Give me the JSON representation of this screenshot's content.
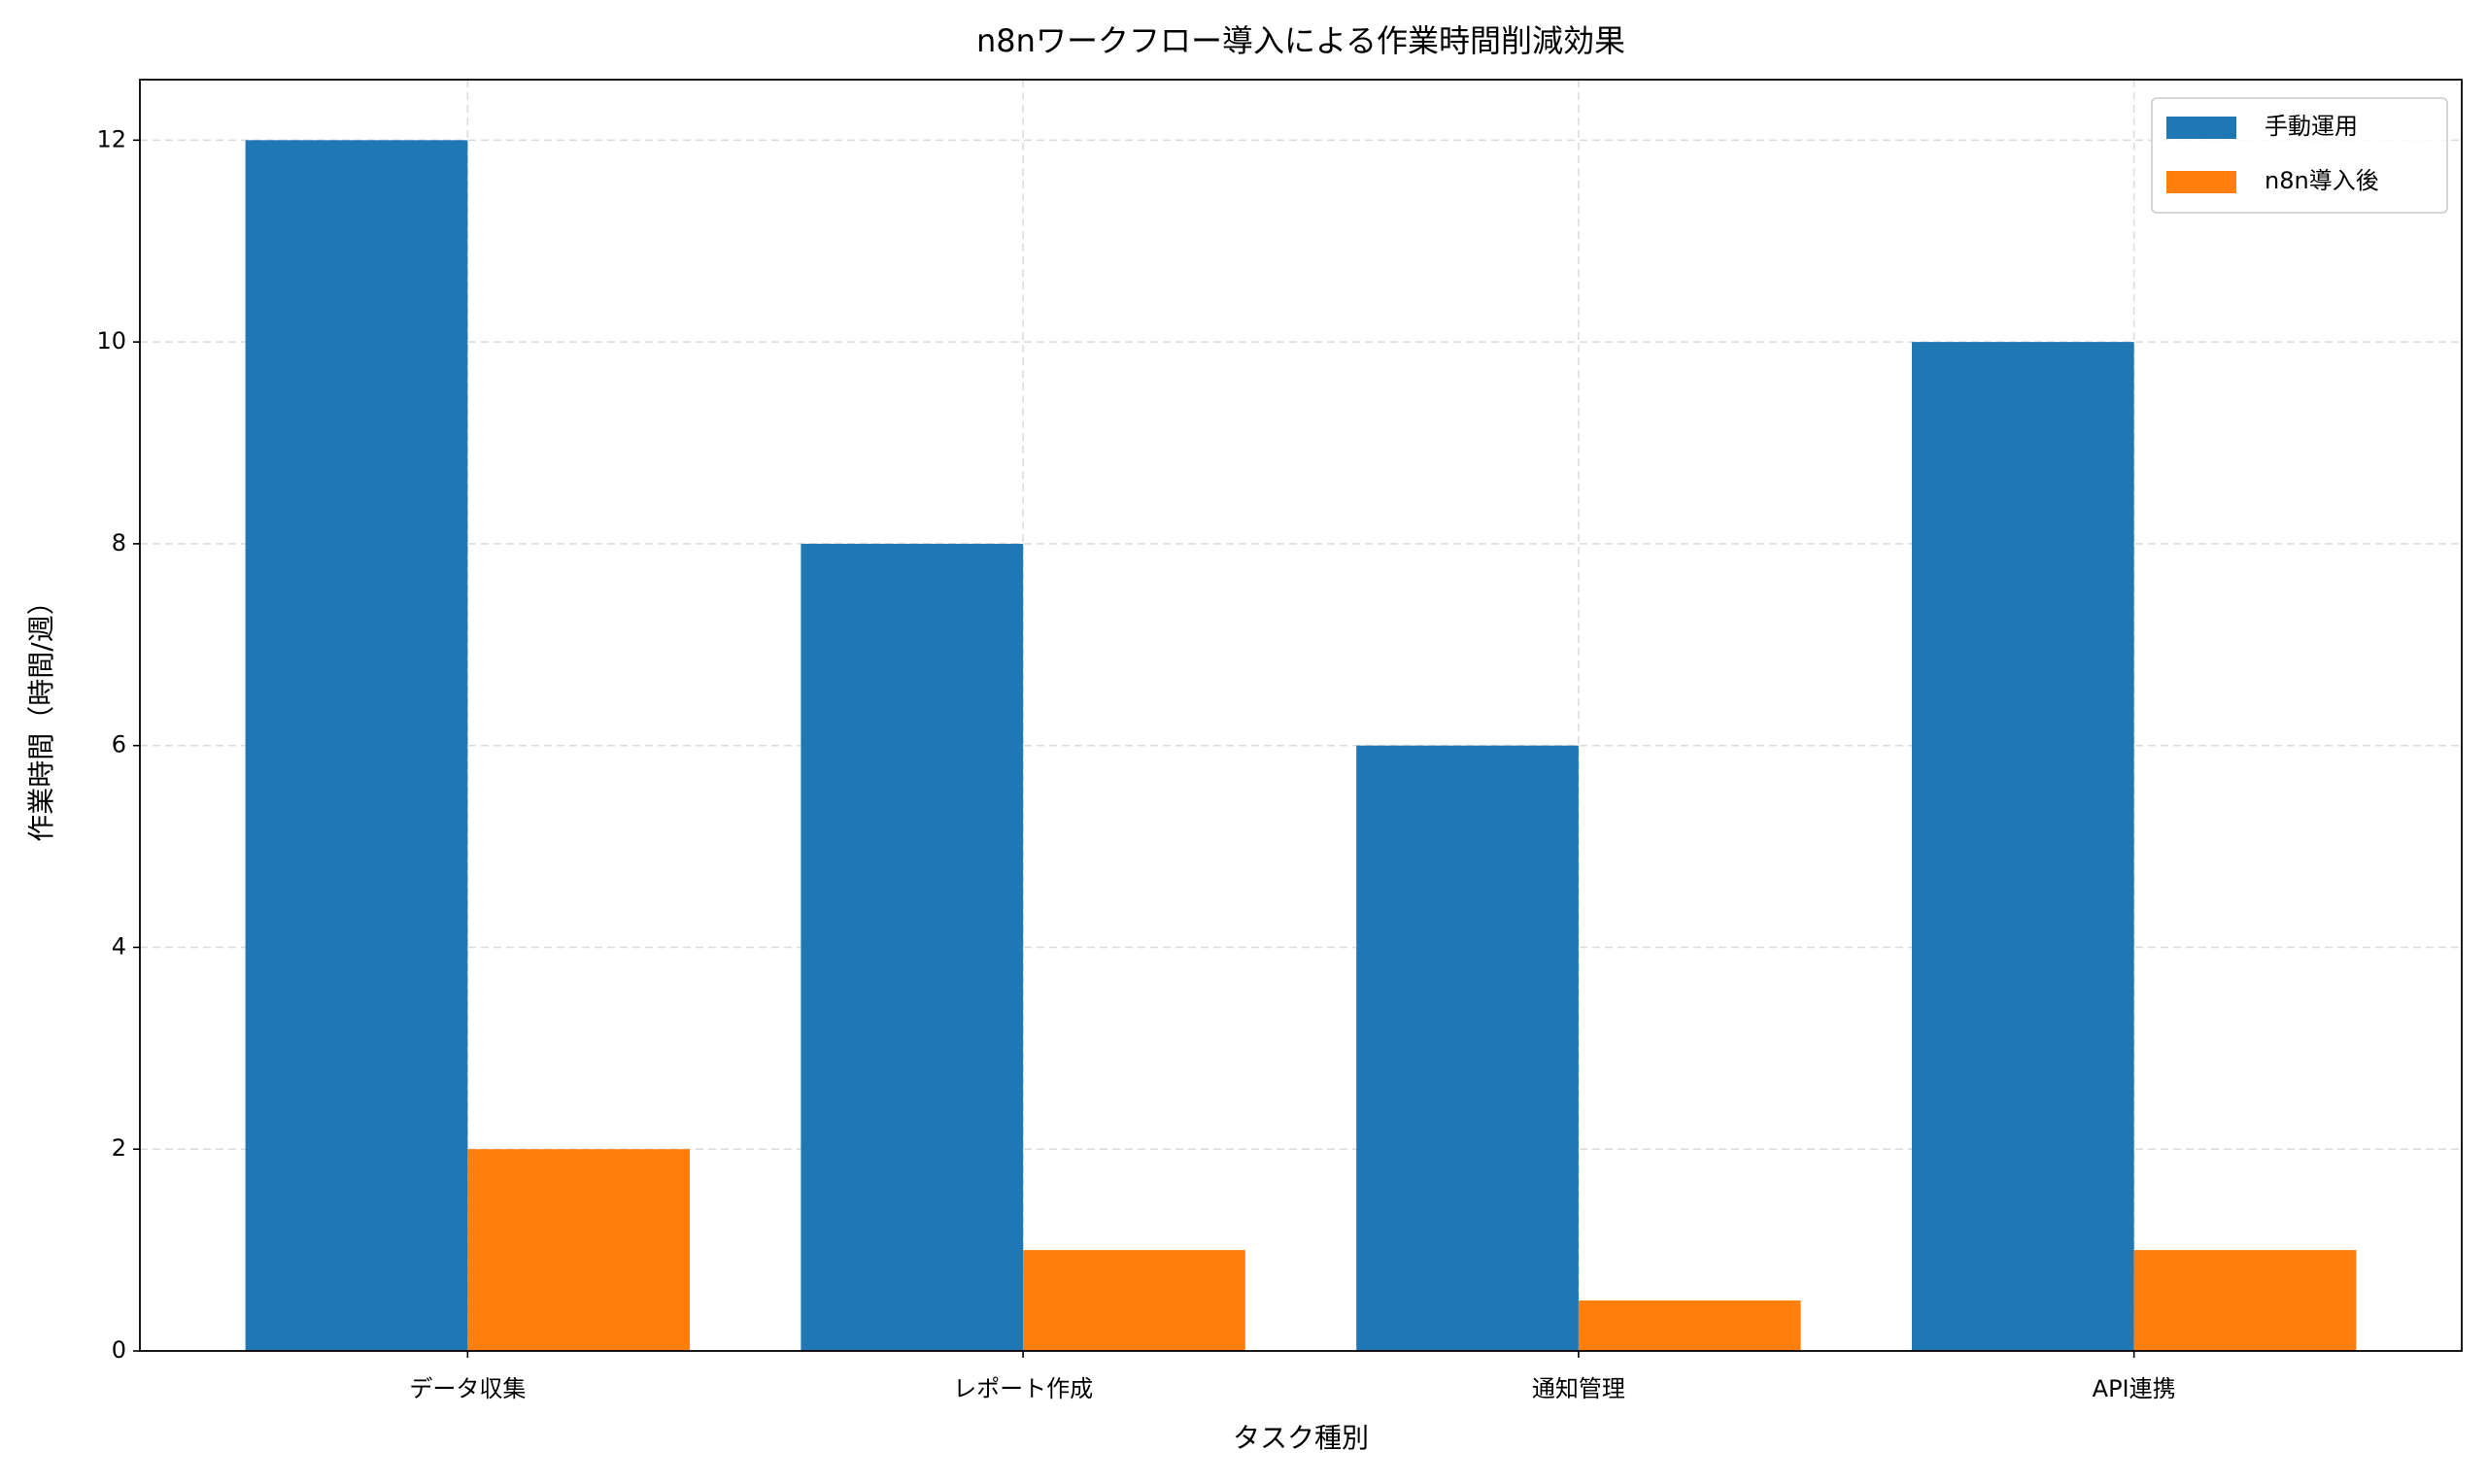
{
  "chart_data": {
    "type": "bar",
    "title": "n8nワークフロー導入による作業時間削減効果",
    "x_label": "タスク種別",
    "y_label": "作業時間（時間/週）",
    "categories": [
      "データ収集",
      "レポート作成",
      "通知管理",
      "API連携"
    ],
    "series": [
      {
        "name": "手動運用",
        "color": "#1f77b4",
        "values": [
          12,
          8,
          6,
          10
        ]
      },
      {
        "name": "n8n導入後",
        "color": "#ff7f0e",
        "values": [
          2,
          1,
          0.5,
          1
        ]
      }
    ],
    "ylim": [
      0,
      12.6
    ],
    "yticks": [
      0,
      2,
      4,
      6,
      8,
      10,
      12
    ],
    "grid": true,
    "legend": "upper right"
  }
}
